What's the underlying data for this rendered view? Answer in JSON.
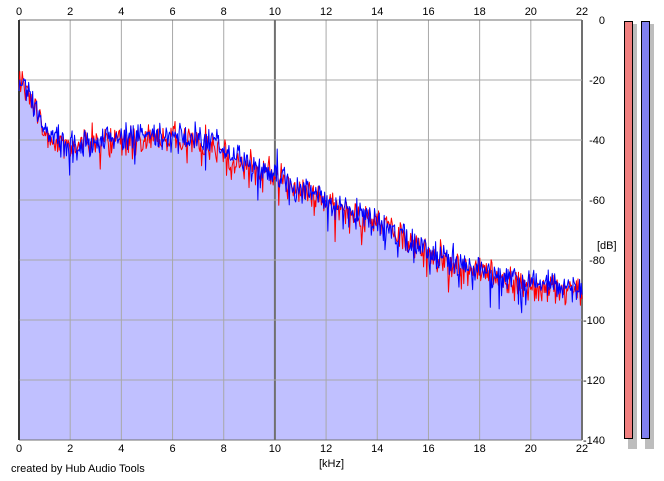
{
  "footer": {
    "credit": "created by Hub Audio Tools"
  },
  "colors": {
    "background": "#ffffff",
    "fill": "#c0c0ff",
    "channel_left": "#ff0000",
    "channel_right": "#0000ff",
    "grid": "#a8a8a8",
    "grid_major": "#707070",
    "meter_left": "#f08080",
    "meter_right": "#8080f0"
  },
  "meters": [
    {
      "name": "left-channel-meter",
      "color": "#f08080",
      "level_db": 0
    },
    {
      "name": "right-channel-meter",
      "color": "#8080f0",
      "level_db": 0
    }
  ],
  "chart_data": {
    "type": "area",
    "title": "",
    "xlabel": "[kHz]",
    "ylabel": "[dB]",
    "xlim": [
      0,
      22
    ],
    "ylim": [
      -140,
      0
    ],
    "x_ticks": [
      0,
      2,
      4,
      6,
      8,
      10,
      12,
      14,
      16,
      18,
      20,
      22
    ],
    "x_tick_labels": [
      "0",
      "2",
      "4",
      "6",
      "8",
      "10",
      "12",
      "14",
      "16",
      "18",
      "20",
      "22"
    ],
    "y_ticks": [
      0,
      -20,
      -40,
      -60,
      -80,
      -100,
      -120,
      -140
    ],
    "y_tick_labels": [
      "0",
      "-20",
      "-40",
      "-60",
      "-80",
      "-100",
      "-120",
      "-140"
    ],
    "grid": true,
    "x": [
      0,
      0.25,
      0.5,
      0.75,
      1,
      1.5,
      2,
      2.5,
      3,
      3.5,
      4,
      4.5,
      5,
      5.5,
      6,
      6.5,
      7,
      7.5,
      8,
      8.5,
      9,
      9.5,
      10,
      10.5,
      11,
      11.5,
      12,
      12.5,
      13,
      13.5,
      14,
      14.5,
      15,
      15.5,
      16,
      16.5,
      17,
      17.5,
      18,
      18.5,
      19,
      19.5,
      20,
      20.5,
      21,
      21.5,
      22
    ],
    "series": [
      {
        "values": [
          -18,
          -22,
          -28,
          -31,
          -38,
          -40,
          -42,
          -41,
          -41,
          -40,
          -40,
          -40,
          -40,
          -39,
          -39,
          -40,
          -41,
          -41,
          -44,
          -46,
          -48,
          -51,
          -51,
          -55,
          -57,
          -58,
          -61,
          -63,
          -64,
          -66,
          -67,
          -70,
          -73,
          -75,
          -78,
          -80,
          -82,
          -83,
          -84,
          -85,
          -86,
          -87,
          -88,
          -89,
          -90,
          -90,
          -91
        ]
      },
      {
        "values": [
          -19,
          -22,
          -27,
          -31,
          -38,
          -40,
          -42,
          -41,
          -41,
          -40,
          -40,
          -40,
          -39,
          -39,
          -39,
          -39,
          -40,
          -40,
          -44,
          -46,
          -48,
          -50,
          -51,
          -54,
          -56,
          -58,
          -60,
          -62,
          -64,
          -66,
          -67,
          -70,
          -72,
          -74,
          -77,
          -79,
          -81,
          -82,
          -84,
          -85,
          -86,
          -87,
          -87,
          -88,
          -89,
          -89,
          -90
        ]
      }
    ]
  }
}
